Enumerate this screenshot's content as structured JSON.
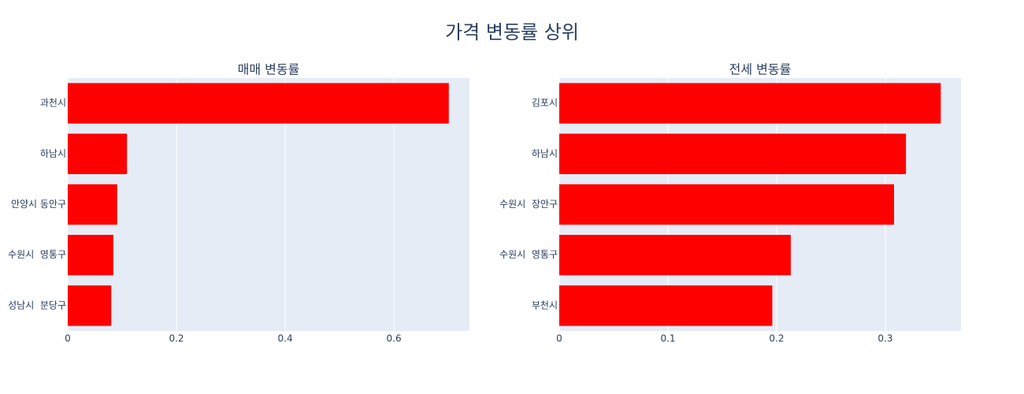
{
  "title": "가격 변동률 상위",
  "chart_data": [
    {
      "type": "bar",
      "orientation": "h",
      "title": "매매 변동률",
      "categories": [
        "과천시",
        "하남시",
        "안양시 동안구",
        "수원시  영통구",
        "성남시  분당구"
      ],
      "values": [
        0.701,
        0.109,
        0.091,
        0.084,
        0.08
      ],
      "color": "#ff0000",
      "xlim": [
        0,
        0.739
      ],
      "xticks": [
        0,
        0.2,
        0.4,
        0.6
      ],
      "grid": true
    },
    {
      "type": "bar",
      "orientation": "h",
      "title": "전세 변동률",
      "categories": [
        "김포시",
        "하남시",
        "수원시  장안구",
        "수원시  영통구",
        "부천시"
      ],
      "values": [
        0.351,
        0.319,
        0.308,
        0.213,
        0.196
      ],
      "color": "#ff0000",
      "xlim": [
        0,
        0.3696
      ],
      "xticks": [
        0,
        0.1,
        0.2,
        0.3
      ],
      "grid": true
    }
  ]
}
